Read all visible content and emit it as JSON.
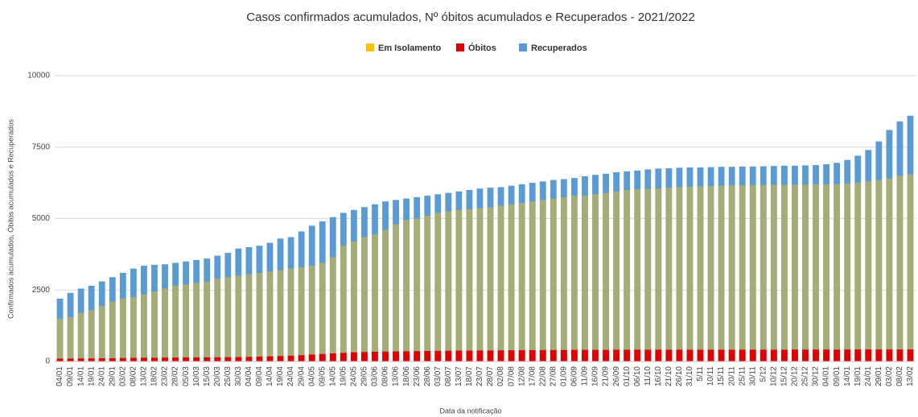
{
  "chart_data": {
    "type": "bar",
    "title": "Casos confirmados acumulados, Nº óbitos acumulados e Recuperados - 2021/2022",
    "x_label": "Data da notificação",
    "y_label": "Confirmados acumulados, Óbitos acumulados e Recuperados",
    "categories": [
      "04/01",
      "09/01",
      "14/01",
      "19/01",
      "24/01",
      "29/01",
      "03/02",
      "08/02",
      "13/02",
      "18/02",
      "23/02",
      "28/02",
      "05/03",
      "10/03",
      "15/03",
      "20/03",
      "25/03",
      "30/03",
      "04/04",
      "09/04",
      "14/04",
      "19/04",
      "24/04",
      "29/04",
      "04/05",
      "09/05",
      "14/05",
      "19/05",
      "24/05",
      "29/05",
      "03/06",
      "08/06",
      "13/06",
      "18/06",
      "23/06",
      "28/06",
      "03/07",
      "08/07",
      "13/07",
      "18/07",
      "23/07",
      "28/07",
      "02/08",
      "07/08",
      "12/08",
      "17/08",
      "22/08",
      "27/08",
      "01/09",
      "06/09",
      "11/09",
      "16/09",
      "21/09",
      "26/09",
      "01/10",
      "06/10",
      "11/10",
      "16/10",
      "21/10",
      "26/10",
      "31/10",
      "5/11",
      "10/11",
      "15/11",
      "20/11",
      "25/11",
      "30/11",
      "5/12",
      "10/12",
      "15/12",
      "20/12",
      "25/12",
      "30/12",
      "04/01",
      "09/01",
      "14/01",
      "19/01",
      "24/01",
      "29/01",
      "03/02",
      "08/02",
      "13/02"
    ],
    "series": [
      {
        "name": "Em Isolamento",
        "color": "#ffc000",
        "values": [
          1500,
          1550,
          1700,
          1800,
          1950,
          2100,
          2200,
          2250,
          2350,
          2450,
          2550,
          2650,
          2700,
          2750,
          2800,
          2900,
          2950,
          3000,
          3050,
          3100,
          3150,
          3200,
          3250,
          3300,
          3350,
          3450,
          3650,
          4050,
          4200,
          4350,
          4450,
          4600,
          4800,
          4950,
          5000,
          5100,
          5200,
          5250,
          5300,
          5330,
          5360,
          5400,
          5450,
          5500,
          5550,
          5600,
          5650,
          5700,
          5750,
          5800,
          5800,
          5850,
          5900,
          5950,
          6000,
          6020,
          6040,
          6050,
          6080,
          6100,
          6120,
          6130,
          6140,
          6150,
          6160,
          6160,
          6170,
          6170,
          6180,
          6180,
          6190,
          6190,
          6200,
          6200,
          6210,
          6230,
          6260,
          6300,
          6350,
          6400,
          6500,
          6550
        ]
      },
      {
        "name": "Óbitos",
        "color": "#e00000",
        "values": [
          100,
          100,
          105,
          105,
          110,
          110,
          120,
          125,
          130,
          130,
          135,
          135,
          140,
          140,
          145,
          145,
          150,
          155,
          160,
          170,
          180,
          190,
          200,
          220,
          240,
          260,
          280,
          300,
          320,
          330,
          340,
          345,
          350,
          355,
          360,
          365,
          370,
          375,
          380,
          380,
          385,
          385,
          390,
          390,
          395,
          395,
          400,
          400,
          400,
          405,
          405,
          405,
          405,
          410,
          410,
          410,
          410,
          410,
          410,
          410,
          410,
          410,
          410,
          410,
          410,
          410,
          410,
          410,
          410,
          410,
          415,
          415,
          415,
          415,
          415,
          415,
          420,
          420,
          420,
          420,
          420,
          420
        ]
      },
      {
        "name": "Recuperados",
        "color": "#5b9bd5",
        "values": [
          2200,
          2400,
          2550,
          2650,
          2800,
          2950,
          3100,
          3250,
          3350,
          3380,
          3400,
          3450,
          3500,
          3550,
          3600,
          3700,
          3800,
          3950,
          4000,
          4050,
          4150,
          4300,
          4350,
          4550,
          4750,
          4900,
          5050,
          5200,
          5300,
          5400,
          5500,
          5600,
          5650,
          5700,
          5750,
          5800,
          5850,
          5900,
          5950,
          6000,
          6050,
          6080,
          6100,
          6150,
          6200,
          6250,
          6300,
          6350,
          6380,
          6420,
          6480,
          6530,
          6570,
          6620,
          6650,
          6680,
          6720,
          6750,
          6760,
          6780,
          6790,
          6790,
          6800,
          6810,
          6810,
          6820,
          6820,
          6830,
          6840,
          6850,
          6850,
          6860,
          6870,
          6900,
          6950,
          7050,
          7200,
          7400,
          7700,
          8100,
          8400,
          8600
        ]
      }
    ],
    "ylim": [
      0,
      10000
    ],
    "yticks": [
      0,
      2500,
      5000,
      7500,
      10000
    ],
    "grid": true,
    "legend": "top"
  }
}
